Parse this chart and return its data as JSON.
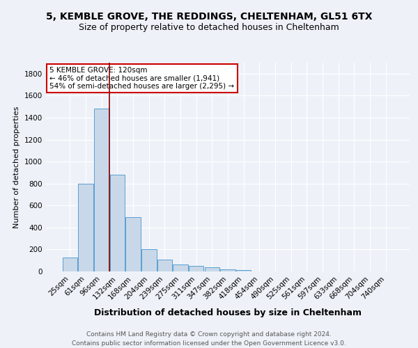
{
  "title1": "5, KEMBLE GROVE, THE REDDINGS, CHELTENHAM, GL51 6TX",
  "title2": "Size of property relative to detached houses in Cheltenham",
  "xlabel": "Distribution of detached houses by size in Cheltenham",
  "ylabel": "Number of detached properties",
  "bar_labels": [
    "25sqm",
    "61sqm",
    "96sqm",
    "132sqm",
    "168sqm",
    "204sqm",
    "239sqm",
    "275sqm",
    "311sqm",
    "347sqm",
    "382sqm",
    "418sqm",
    "454sqm",
    "490sqm",
    "525sqm",
    "561sqm",
    "597sqm",
    "633sqm",
    "668sqm",
    "704sqm",
    "740sqm"
  ],
  "bar_values": [
    127,
    800,
    1480,
    880,
    495,
    205,
    105,
    65,
    48,
    35,
    20,
    15,
    0,
    0,
    0,
    0,
    0,
    0,
    0,
    0,
    0
  ],
  "bar_color": "#c8d8e8",
  "bar_edge_color": "#5a9fd4",
  "vline_color": "#8b0000",
  "annotation_text": "5 KEMBLE GROVE: 120sqm\n← 46% of detached houses are smaller (1,941)\n54% of semi-detached houses are larger (2,295) →",
  "annotation_box_color": "#ffffff",
  "annotation_box_edge": "#cc0000",
  "footer1": "Contains HM Land Registry data © Crown copyright and database right 2024.",
  "footer2": "Contains public sector information licensed under the Open Government Licence v3.0.",
  "bg_color": "#eef2f8",
  "ylim": [
    0,
    1900
  ],
  "yticks": [
    0,
    200,
    400,
    600,
    800,
    1000,
    1200,
    1400,
    1600,
    1800
  ],
  "title1_fontsize": 10,
  "title2_fontsize": 9,
  "xlabel_fontsize": 9,
  "ylabel_fontsize": 8,
  "tick_fontsize": 7.5,
  "footer_fontsize": 6.5
}
